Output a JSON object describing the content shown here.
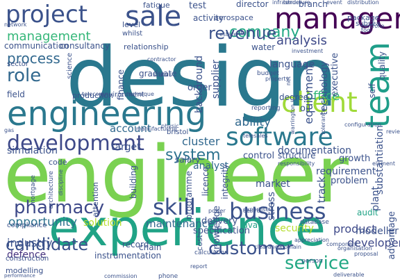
{
  "words": [
    {
      "text": "engineer",
      "color": "#7ad151"
    },
    {
      "text": "design",
      "color": "#2a788e"
    },
    {
      "text": "experience",
      "color": "#20a386"
    },
    {
      "text": "engineering",
      "color": "#2a788e"
    },
    {
      "text": "manager",
      "color": "#440154"
    },
    {
      "text": "sale",
      "color": "#3b528b"
    },
    {
      "text": "project",
      "color": "#3b528b"
    },
    {
      "text": "client",
      "color": "#a0da39"
    },
    {
      "text": "software",
      "color": "#2a788e"
    },
    {
      "text": "development",
      "color": "#3e4989"
    },
    {
      "text": "team",
      "color": "#1f9e89"
    },
    {
      "text": "business",
      "color": "#3b528b"
    },
    {
      "text": "skill",
      "color": "#3b528b"
    },
    {
      "text": "customer",
      "color": "#3b528b"
    },
    {
      "text": "service",
      "color": "#22a884"
    },
    {
      "text": "pharmacy",
      "color": "#3e4989"
    },
    {
      "text": "candidate",
      "color": "#3b528b"
    },
    {
      "text": "company",
      "color": "#22a884"
    },
    {
      "text": "revenue",
      "color": "#3b528b"
    },
    {
      "text": "role",
      "color": "#31688e"
    },
    {
      "text": "process",
      "color": "#31688e"
    },
    {
      "text": "system",
      "color": "#2c728e"
    },
    {
      "text": "management",
      "color": "#35b779"
    },
    {
      "text": "analysis",
      "color": "#3e4989"
    },
    {
      "text": "opportunity",
      "color": "#2c728e"
    },
    {
      "text": "industry",
      "color": "#3b528b"
    },
    {
      "text": "defence",
      "color": "#46327e"
    },
    {
      "text": "product",
      "color": "#3e4989"
    },
    {
      "text": "developer",
      "color": "#3e4989"
    },
    {
      "text": "solution",
      "color": "#b5de2b"
    },
    {
      "text": "maintenance",
      "color": "#31688e"
    },
    {
      "text": "market",
      "color": "#3b528b"
    },
    {
      "text": "analyst",
      "color": "#31688e"
    },
    {
      "text": "account",
      "color": "#31688e"
    },
    {
      "text": "cluster",
      "color": "#31688e"
    },
    {
      "text": "ability",
      "color": "#31688e"
    },
    {
      "text": "office",
      "color": "#35b779"
    },
    {
      "text": "supplier",
      "color": "#3b528b"
    },
    {
      "text": "equipment",
      "color": "#3b528b"
    },
    {
      "text": "technology",
      "color": "#3b528b"
    },
    {
      "text": "requirement",
      "color": "#3b528b"
    },
    {
      "text": "substantiation",
      "color": "#3b528b"
    },
    {
      "text": "documentation",
      "color": "#3b528b"
    },
    {
      "text": "simulation",
      "color": "#3b528b"
    },
    {
      "text": "security",
      "color": "#b5de2b"
    },
    {
      "text": "instrumentation",
      "color": "#3b528b"
    },
    {
      "text": "modelling",
      "color": "#3b528b"
    },
    {
      "text": "construction",
      "color": "#3b528b"
    },
    {
      "text": "modeller",
      "color": "#3b528b"
    },
    {
      "text": "audit",
      "color": "#20a386"
    },
    {
      "text": "advantage",
      "color": "#3b528b"
    },
    {
      "text": "java",
      "color": "#20a386"
    },
    {
      "text": "stress",
      "color": "#3b528b"
    },
    {
      "text": "knowledge",
      "color": "#3b528b"
    },
    {
      "text": "specification",
      "color": "#3b528b"
    },
    {
      "text": "delivery",
      "color": "#3b528b"
    },
    {
      "text": "cost",
      "color": "#3b528b"
    },
    {
      "text": "record",
      "color": "#3b528b"
    },
    {
      "text": "problem",
      "color": "#3b528b"
    },
    {
      "text": "growth",
      "color": "#3b528b"
    },
    {
      "text": "plant",
      "color": "#3b528b"
    },
    {
      "text": "track",
      "color": "#3b528b"
    },
    {
      "text": "target",
      "color": "#3b528b"
    },
    {
      "text": "control",
      "color": "#3b528b"
    },
    {
      "text": "structure",
      "color": "#3b528b"
    },
    {
      "text": "salary",
      "color": "#3b528b"
    },
    {
      "text": "chain",
      "color": "#3b528b"
    },
    {
      "text": "building",
      "color": "#3b528b"
    },
    {
      "text": "licence",
      "color": "#3b528b"
    },
    {
      "text": "integrity",
      "color": "#3b528b"
    },
    {
      "text": "programme",
      "color": "#3b528b"
    },
    {
      "text": "order",
      "color": "#3b528b"
    },
    {
      "text": "background",
      "color": "#3b528b"
    },
    {
      "text": "language",
      "color": "#3b528b"
    },
    {
      "text": "degree",
      "color": "#3b528b"
    },
    {
      "text": "oil",
      "color": "#3b528b"
    },
    {
      "text": "executive",
      "color": "#3b528b"
    },
    {
      "text": "self",
      "color": "#3b528b"
    },
    {
      "text": "quality",
      "color": "#3b528b"
    },
    {
      "text": "water",
      "color": "#3b528b"
    },
    {
      "text": "relationship",
      "color": "#3b528b"
    },
    {
      "text": "consultancy",
      "color": "#3b528b"
    },
    {
      "text": "communication",
      "color": "#3b528b"
    },
    {
      "text": "sector",
      "color": "#3b528b"
    },
    {
      "text": "field",
      "color": "#3b528b"
    },
    {
      "text": "production",
      "color": "#3b528b"
    },
    {
      "text": "environment",
      "color": "#3b528b"
    },
    {
      "text": "graduate",
      "color": "#3b528b"
    },
    {
      "text": "finance",
      "color": "#3b528b"
    },
    {
      "text": "code",
      "color": "#3b528b"
    },
    {
      "text": "bristol",
      "color": "#3b528b"
    },
    {
      "text": "level",
      "color": "#3b528b"
    },
    {
      "text": "fatigue",
      "color": "#3b528b"
    },
    {
      "text": "test",
      "color": "#3b528b"
    },
    {
      "text": "director",
      "color": "#3b528b"
    },
    {
      "text": "activity",
      "color": "#3b528b"
    },
    {
      "text": "aerospace",
      "color": "#3b528b"
    },
    {
      "text": "branch",
      "color": "#3b528b"
    },
    {
      "text": "package",
      "color": "#3b528b"
    },
    {
      "text": "subsea",
      "color": "#3b528b"
    },
    {
      "text": "infrastructure",
      "color": "#3b528b"
    },
    {
      "text": "event",
      "color": "#3b528b"
    },
    {
      "text": "tender",
      "color": "#3b528b"
    },
    {
      "text": "distribution",
      "color": "#3b528b"
    },
    {
      "text": "whilst",
      "color": "#3b528b"
    },
    {
      "text": "network",
      "color": "#3b528b"
    },
    {
      "text": "science",
      "color": "#3b528b"
    },
    {
      "text": "gas",
      "color": "#3b528b"
    },
    {
      "text": "manufacturing",
      "color": "#3b528b"
    },
    {
      "text": "configuration",
      "color": "#3b528b"
    },
    {
      "text": "telesales",
      "color": "#3b528b"
    },
    {
      "text": "reporting",
      "color": "#3b528b"
    },
    {
      "text": "responsibility",
      "color": "#3b528b"
    },
    {
      "text": "database",
      "color": "#3b528b"
    },
    {
      "text": "desire",
      "color": "#3b528b"
    },
    {
      "text": "clearance",
      "color": "#3b528b"
    },
    {
      "text": "domain",
      "color": "#3b528b"
    },
    {
      "text": "person",
      "color": "#3b528b"
    },
    {
      "text": "report",
      "color": "#3b528b"
    },
    {
      "text": "phone",
      "color": "#3b528b"
    },
    {
      "text": "commission",
      "color": "#3b528b"
    },
    {
      "text": "deliverable",
      "color": "#3b528b"
    },
    {
      "text": "compliance",
      "color": "#3b528b"
    },
    {
      "text": "performance",
      "color": "#3b528b"
    },
    {
      "text": "mortgage",
      "color": "#3b528b"
    },
    {
      "text": "architecture",
      "color": "#3b528b"
    },
    {
      "text": "discipline",
      "color": "#3b528b"
    },
    {
      "text": "attention",
      "color": "#3b528b"
    },
    {
      "text": "calculation",
      "color": "#3b528b"
    },
    {
      "text": "appreciation",
      "color": "#3b528b"
    },
    {
      "text": "component",
      "color": "#3b528b"
    },
    {
      "text": "organisation",
      "color": "#3b528b"
    },
    {
      "text": "proposal",
      "color": "#3b528b"
    },
    {
      "text": "element",
      "color": "#3b528b"
    },
    {
      "text": "review",
      "color": "#3b528b"
    },
    {
      "text": "tolerance",
      "color": "#3b528b"
    },
    {
      "text": "warrington",
      "color": "#3b528b"
    },
    {
      "text": "portfolio",
      "color": "#3b528b"
    },
    {
      "text": "tool",
      "color": "#3b528b"
    },
    {
      "text": "investment",
      "color": "#3b528b"
    },
    {
      "text": "budget",
      "color": "#3b528b"
    },
    {
      "text": "property",
      "color": "#3b528b"
    },
    {
      "text": "estate",
      "color": "#3b528b"
    },
    {
      "text": "contractor",
      "color": "#3b528b"
    },
    {
      "text": "status",
      "color": "#3b528b"
    },
    {
      "text": "technique",
      "color": "#3b528b"
    },
    {
      "text": "telecom",
      "color": "#3b528b"
    },
    {
      "text": "physic",
      "color": "#3b528b"
    },
    {
      "text": "power",
      "color": "#3b528b"
    },
    {
      "text": "expertise",
      "color": "#3b528b"
    },
    {
      "text": "net",
      "color": "#3b528b"
    },
    {
      "text": "site",
      "color": "#3b528b"
    },
    {
      "text": "cable",
      "color": "#3b528b"
    },
    {
      "text": "asset",
      "color": "#3b528b"
    },
    {
      "text": "firm",
      "color": "#3b528b"
    },
    {
      "text": "tax",
      "color": "#3b528b"
    }
  ]
}
